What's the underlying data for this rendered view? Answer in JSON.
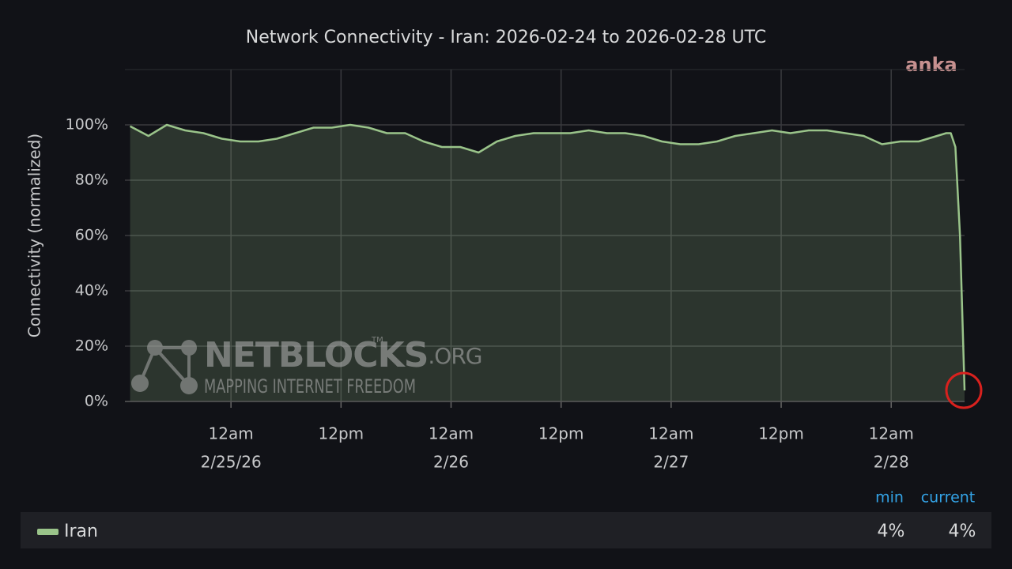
{
  "chart_data": {
    "type": "area",
    "title": "Network Connectivity - Iran: 2026-02-24 to 2026-02-28 UTC",
    "ylabel": "Connectivity (normalized)",
    "watermarks": {
      "corner": "anka",
      "logo": "NETBLOCKS",
      "logo_suffix": ".ORG",
      "logo_mark": "TM",
      "tagline": "MAPPING INTERNET FREEDOM"
    },
    "x": [
      "2026-02-24T13:00",
      "2026-02-24T15:00",
      "2026-02-24T17:00",
      "2026-02-24T19:00",
      "2026-02-24T21:00",
      "2026-02-24T23:00",
      "2026-02-25T01:00",
      "2026-02-25T03:00",
      "2026-02-25T05:00",
      "2026-02-25T07:00",
      "2026-02-25T09:00",
      "2026-02-25T11:00",
      "2026-02-25T13:00",
      "2026-02-25T15:00",
      "2026-02-25T17:00",
      "2026-02-25T19:00",
      "2026-02-25T21:00",
      "2026-02-25T23:00",
      "2026-02-26T01:00",
      "2026-02-26T03:00",
      "2026-02-26T05:00",
      "2026-02-26T07:00",
      "2026-02-26T09:00",
      "2026-02-26T11:00",
      "2026-02-26T13:00",
      "2026-02-26T15:00",
      "2026-02-26T17:00",
      "2026-02-26T19:00",
      "2026-02-26T21:00",
      "2026-02-26T23:00",
      "2026-02-27T01:00",
      "2026-02-27T03:00",
      "2026-02-27T05:00",
      "2026-02-27T07:00",
      "2026-02-27T09:00",
      "2026-02-27T11:00",
      "2026-02-27T13:00",
      "2026-02-27T15:00",
      "2026-02-27T17:00",
      "2026-02-27T19:00",
      "2026-02-27T21:00",
      "2026-02-27T23:00",
      "2026-02-28T01:00",
      "2026-02-28T03:00",
      "2026-02-28T05:00",
      "2026-02-28T06:00",
      "2026-02-28T06:30",
      "2026-02-28T07:00",
      "2026-02-28T07:30",
      "2026-02-28T08:00"
    ],
    "series": [
      {
        "name": "Iran",
        "color": "#9ac48a",
        "values": [
          99.5,
          96,
          100,
          98,
          97,
          95,
          94,
          94,
          95,
          97,
          99,
          99,
          100,
          99,
          97,
          97,
          94,
          92,
          92,
          90,
          94,
          96,
          97,
          97,
          97,
          98,
          97,
          97,
          96,
          94,
          93,
          93,
          94,
          96,
          97,
          98,
          97,
          98,
          98,
          97,
          96,
          93,
          94,
          94,
          96,
          97,
          97,
          92,
          60,
          4
        ]
      }
    ],
    "xlim": [
      "2026-02-24T12:26",
      "2026-02-28T08:00"
    ],
    "xticks": [
      {
        "value": "2026-02-25T00:00",
        "label": "12am"
      },
      {
        "value": "2026-02-25T12:00",
        "label": "12pm"
      },
      {
        "value": "2026-02-26T00:00",
        "label": "12am"
      },
      {
        "value": "2026-02-26T12:00",
        "label": "12pm"
      },
      {
        "value": "2026-02-27T00:00",
        "label": "12am"
      },
      {
        "value": "2026-02-27T12:00",
        "label": "12pm"
      },
      {
        "value": "2026-02-28T00:00",
        "label": "12am"
      }
    ],
    "xtick_dates": [
      "2/25/26",
      null,
      "2/26",
      null,
      "2/27",
      null,
      "2/28"
    ],
    "ylim": [
      0,
      120
    ],
    "yticks": [
      {
        "value": 0,
        "label": "0%"
      },
      {
        "value": 20,
        "label": "20%"
      },
      {
        "value": 40,
        "label": "40%"
      },
      {
        "value": 60,
        "label": "60%"
      },
      {
        "value": 80,
        "label": "80%"
      },
      {
        "value": 100,
        "label": "100%"
      }
    ],
    "grid": true,
    "legend_table": {
      "headers": [
        "min",
        "current"
      ],
      "values": [
        4,
        4
      ],
      "value_labels": [
        "4%",
        "4%"
      ]
    }
  }
}
